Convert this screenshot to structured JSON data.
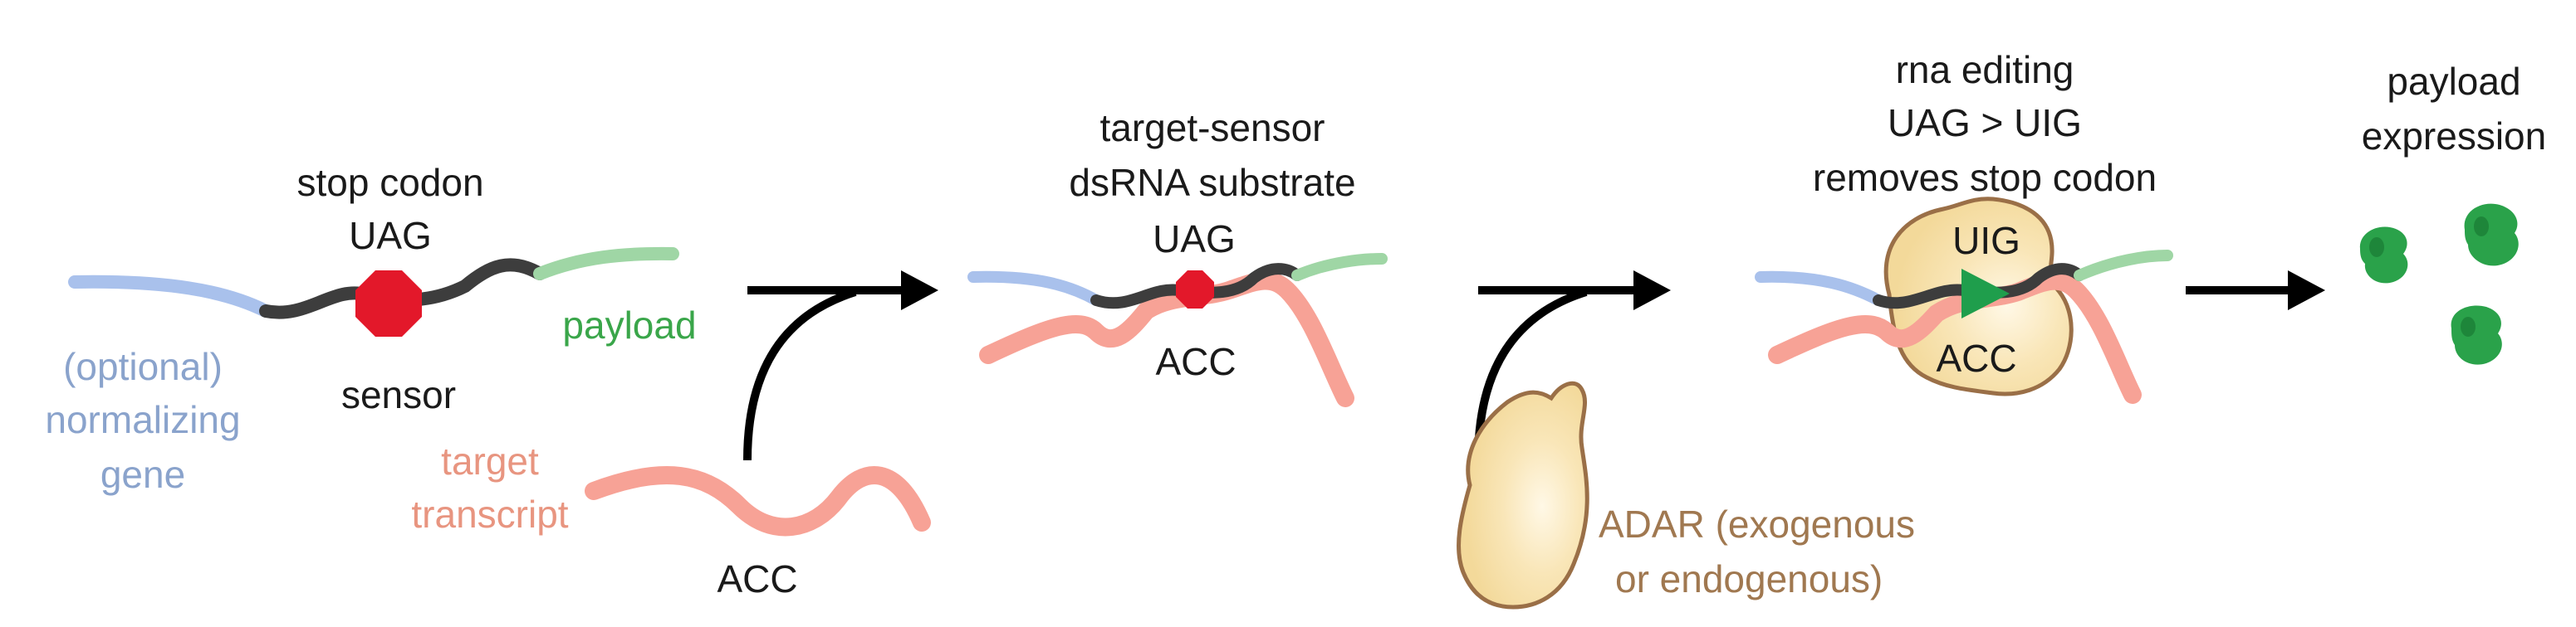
{
  "colors": {
    "normalizing_gene": "#a9c1ec",
    "sensor": "#3d3d3d",
    "payload_strand": "#9fd6a5",
    "target_transcript": "#f7a296",
    "stop_codon": "#e3182a",
    "adar_fill": "#f9e1a9",
    "adar_outline": "#9a6f47",
    "payload_protein": "#2aa24a",
    "edited_codon_arrow": "#1f9e4c",
    "arrow": "#000000"
  },
  "icons": {
    "stop_codon": "red-octagon-icon",
    "adar_enzyme": "adar-blob-icon",
    "payload_protein": "green-protein-icon",
    "edit_marker": "green-triangle-icon"
  },
  "panel1": {
    "stop_codon_title": "stop codon",
    "codon": "UAG",
    "payload": "payload",
    "sensor": "sensor",
    "normalizing_gene": [
      "(optional)",
      "normalizing",
      "gene"
    ],
    "target_transcript": [
      "target",
      "transcript"
    ],
    "target_codon": "ACC"
  },
  "panel2": {
    "title": [
      "target-sensor",
      "dsRNA substrate"
    ],
    "codon_top": "UAG",
    "codon_bottom": "ACC"
  },
  "panel3": {
    "adar": [
      "ADAR (exogenous",
      "or endogenous)"
    ]
  },
  "panel4": {
    "title": [
      "rna editing",
      "UAG > UIG",
      "removes stop codon"
    ],
    "codon_top": "UIG",
    "codon_bottom": "ACC"
  },
  "panel5": {
    "title": [
      "payload",
      "expression"
    ]
  }
}
